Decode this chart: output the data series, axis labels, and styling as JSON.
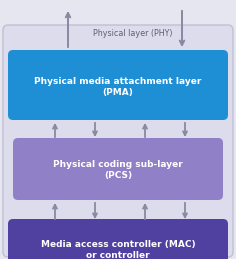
{
  "bg_color": "#e6e6f0",
  "outer_box_color": "#dcdcec",
  "outer_box_edge": "#c0c0d4",
  "pma_box_color": "#1e8fd5",
  "pma_label": "Physical media attachment layer\n(PMA)",
  "pcs_box_color": "#9080c8",
  "pcs_label": "Physical coding sub-layer\n(PCS)",
  "mac_box_color": "#5040a0",
  "mac_label": "Media access controller (MAC)\nor controller",
  "phy_label": "Physical layer (PHY)",
  "arrow_color": "#8888a0",
  "text_color_white": "#ffffff",
  "text_color_phy": "#606070",
  "fig_width": 2.36,
  "fig_height": 2.59,
  "dpi": 100
}
